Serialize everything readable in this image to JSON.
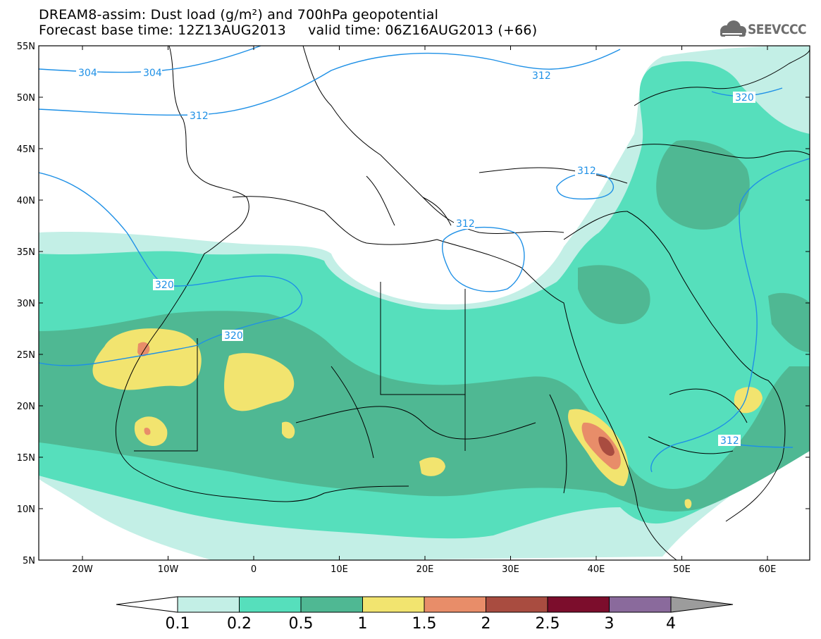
{
  "header": {
    "line1": "DREAM8-assim: Dust load (g/m²) and 700hPa geopotential",
    "line2": "Forecast base time: 12Z13AUG2013     valid time: 06Z16AUG2013 (+66)"
  },
  "logo": {
    "text": "SEEVCCC",
    "icon": "cloud-icon"
  },
  "axes": {
    "lat_labels": [
      "55N",
      "50N",
      "45N",
      "40N",
      "35N",
      "30N",
      "25N",
      "20N",
      "15N",
      "10N",
      "5N"
    ],
    "lon_labels": [
      "20W",
      "10W",
      "0",
      "10E",
      "20E",
      "30E",
      "40E",
      "50E",
      "60E"
    ]
  },
  "contours": [
    {
      "label": "304",
      "value": 304
    },
    {
      "label": "312",
      "value": 312
    },
    {
      "label": "320",
      "value": 320
    }
  ],
  "colorbar": {
    "ticks": [
      "0.1",
      "0.2",
      "0.5",
      "1",
      "1.5",
      "2",
      "2.5",
      "3",
      "4"
    ],
    "colors": [
      "#ffffff",
      "#c3efe6",
      "#56dfbc",
      "#4fb893",
      "#f2e46f",
      "#e88d69",
      "#a94c40",
      "#7c0d2c",
      "#8a6a9c",
      "#9c9c9c"
    ]
  },
  "palette": {
    "very_light": "#c3efe6",
    "light": "#56dfbc",
    "mid": "#4fb893",
    "yellow": "#f2e46f",
    "orange": "#e88d69",
    "red": "#a94c40",
    "contour_line": "#1e90e6"
  }
}
